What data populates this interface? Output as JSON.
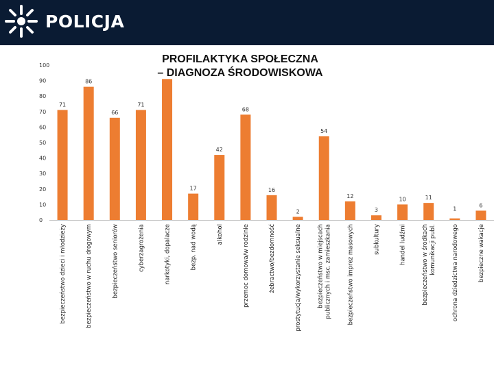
{
  "header": {
    "logo_text": "POLICJA",
    "background_color": "#0a1b33"
  },
  "title": {
    "line1": "PROFILAKTYKA SPOŁECZNA",
    "line2": "– DIAGNOZA ŚRODOWISKOWA"
  },
  "chart_data": {
    "type": "bar",
    "title": "PROFILAKTYKA SPOŁECZNA – DIAGNOZA ŚRODOWISKOWA",
    "xlabel": "",
    "ylabel": "",
    "ylim": [
      0,
      100
    ],
    "yticks": [
      0,
      10,
      20,
      30,
      40,
      50,
      60,
      70,
      80,
      90,
      100
    ],
    "grid": false,
    "legend": "none",
    "bar_color": "#ed7d31",
    "categories": [
      "bezpieczeństwo dzieci i młodzieży",
      "bezpieczeństwo w ruchu drogowym",
      "bezpieczeństwo seniorów",
      "cyberzagrożenia",
      "narkotyki, dopalacze",
      "bezp. nad wodą",
      "alkohol",
      "przemoc domowa/w rodzinie",
      "żebractwo/bezdomność",
      "prostytucja/wykorzystanie seksualne",
      "bezpieczeństwo w miejscach publicznych i msc. zamieszkania",
      "bezpieczeństwo imprez masowych",
      "subkultury",
      "handel ludźmi",
      "bezpieczeństwo w środkach komunikacji publ.",
      "ochrona dziedzictwa narodowego",
      "bezpieczne wakacje"
    ],
    "values": [
      71,
      86,
      66,
      71,
      91,
      17,
      42,
      68,
      16,
      2,
      54,
      12,
      3,
      10,
      11,
      1,
      6
    ],
    "value_labels": [
      "71",
      "86",
      "66",
      "71",
      "",
      "17",
      "42",
      "68",
      "16",
      "2",
      "54",
      "12",
      "3",
      "10",
      "11",
      "1",
      "6"
    ]
  }
}
